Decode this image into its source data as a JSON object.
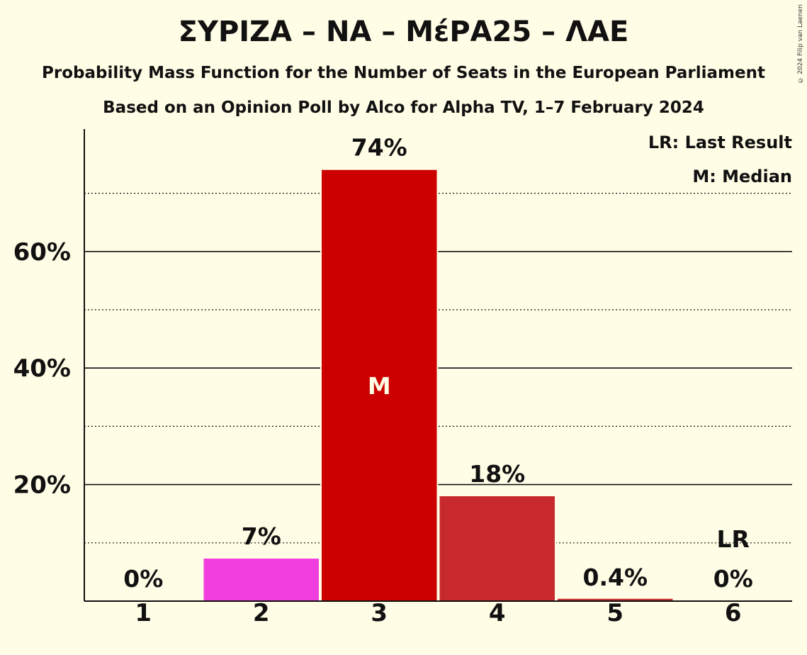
{
  "title": "ΣΥΡΙΖΑ – ΝΑ – ΜέΡΑ25 – ΛΑΕ",
  "subtitle": "Probability Mass Function for the Number of Seats in the European Parliament",
  "subtitle2": "Based on an Opinion Poll by Alco for Alpha TV, 1–7 February 2024",
  "copyright": "© 2024 Filip van Laenen",
  "legend": {
    "lr": "LR: Last Result",
    "m": "M: Median"
  },
  "chart_data": {
    "type": "bar",
    "categories": [
      "1",
      "2",
      "3",
      "4",
      "5",
      "6"
    ],
    "values": [
      0,
      7.3,
      74,
      18,
      0.4,
      0
    ],
    "labels": [
      "0%",
      "7%",
      "74%",
      "18%",
      "0.4%",
      "0%"
    ],
    "colors": [
      "#f03fdd",
      "#f03fdd",
      "#cc0000",
      "#c8292d",
      "#c8292d",
      "#c8292d"
    ],
    "ylim": [
      0,
      80
    ],
    "yticks_major": [
      20,
      40,
      60
    ],
    "ytick_labels": [
      "20%",
      "40%",
      "60%"
    ],
    "yticks_minor": [
      10,
      30,
      50,
      70
    ],
    "median_index": 2,
    "median_label": "M",
    "last_result_index": 5,
    "last_result_label": "LR",
    "grid": true,
    "legend_position": "top-right"
  }
}
